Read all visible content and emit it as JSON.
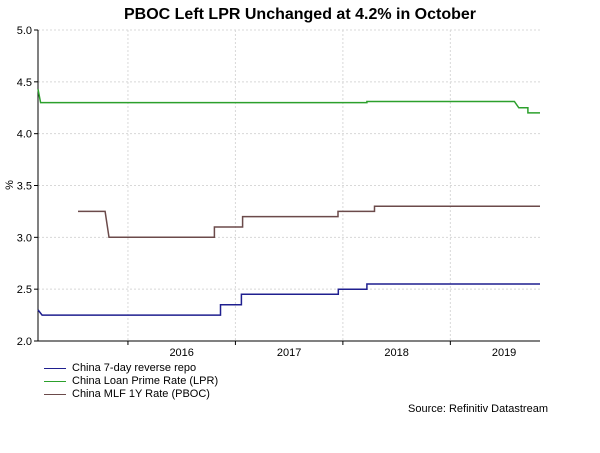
{
  "chart_data": {
    "type": "line",
    "title": "PBOC Left LPR Unchanged at 4.2% in October",
    "ylabel": "%",
    "ylim": [
      2.0,
      5.0
    ],
    "yticks": [
      "2.0",
      "2.5",
      "3.0",
      "3.5",
      "4.0",
      "4.5",
      "5.0"
    ],
    "xlim": [
      "2015-03-01",
      "2019-10-31"
    ],
    "xticks": [
      {
        "label": "2016",
        "date": "2016-07-01"
      },
      {
        "label": "2017",
        "date": "2017-07-01"
      },
      {
        "label": "2018",
        "date": "2018-07-01"
      },
      {
        "label": "2019",
        "date": "2019-07-01"
      }
    ],
    "grid": true,
    "legend_position": "bottom-left",
    "series": [
      {
        "name": "China 7-day reverse repo",
        "color": "#1f1f8f",
        "points": [
          [
            "2015-03-01",
            2.3
          ],
          [
            "2015-03-15",
            2.25
          ],
          [
            "2016-11-10",
            2.25
          ],
          [
            "2016-11-10",
            2.35
          ],
          [
            "2017-01-20",
            2.35
          ],
          [
            "2017-01-20",
            2.45
          ],
          [
            "2017-12-15",
            2.45
          ],
          [
            "2017-12-15",
            2.5
          ],
          [
            "2018-03-22",
            2.5
          ],
          [
            "2018-03-22",
            2.55
          ],
          [
            "2019-10-31",
            2.55
          ]
        ]
      },
      {
        "name": "China Loan Prime Rate (LPR)",
        "color": "#2ca02c",
        "points": [
          [
            "2015-03-01",
            4.43
          ],
          [
            "2015-03-10",
            4.3
          ],
          [
            "2018-03-22",
            4.3
          ],
          [
            "2018-03-22",
            4.31
          ],
          [
            "2019-08-05",
            4.31
          ],
          [
            "2019-08-20",
            4.25
          ],
          [
            "2019-09-20",
            4.25
          ],
          [
            "2019-09-20",
            4.2
          ],
          [
            "2019-10-31",
            4.2
          ]
        ]
      },
      {
        "name": "China MLF 1Y Rate (PBOC)",
        "color": "#6b4a4a",
        "points": [
          [
            "2015-07-15",
            3.25
          ],
          [
            "2015-10-15",
            3.25
          ],
          [
            "2015-10-28",
            3.0
          ],
          [
            "2016-10-20",
            3.0
          ],
          [
            "2016-10-20",
            3.1
          ],
          [
            "2017-01-24",
            3.1
          ],
          [
            "2017-01-24",
            3.2
          ],
          [
            "2017-12-14",
            3.2
          ],
          [
            "2017-12-14",
            3.25
          ],
          [
            "2018-04-17",
            3.25
          ],
          [
            "2018-04-17",
            3.3
          ],
          [
            "2019-10-31",
            3.3
          ]
        ]
      }
    ],
    "source": "Source: Refinitiv Datastream"
  }
}
